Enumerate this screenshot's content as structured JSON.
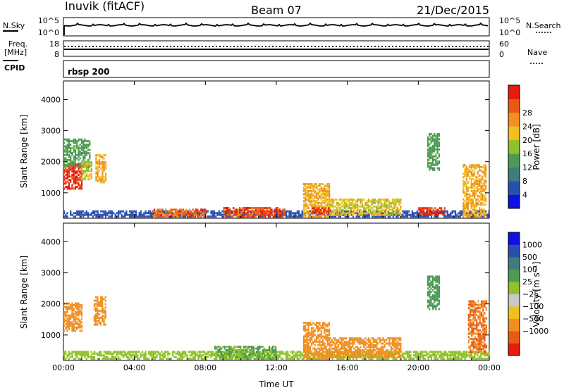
{
  "header": {
    "station": "Inuvik (fitACF)",
    "beam": "Beam 07",
    "date": "21/Dec/2015"
  },
  "side_labels": {
    "nsky": "N.Sky",
    "freq_line1": "Freq.",
    "freq_line2": "[MHz]",
    "cpid": "CPID",
    "nsearch": "N.Search",
    "nave": "Nave",
    "nsky_tick_top": "10^5",
    "nsky_tick_bottom": "10^0",
    "nsearch_tick_top": "10^5",
    "nsearch_tick_bottom": "10^0",
    "freq_tick_top": "18",
    "freq_tick_bottom": "8",
    "nave_tick_top": "60",
    "nave_tick_bottom": "0",
    "cpid_value": "rbsp 200"
  },
  "colors": {
    "power_scale": [
      "#1010e0",
      "#2a4fb0",
      "#3f7d7a",
      "#4c9a55",
      "#8fc12c",
      "#f0c020",
      "#f09020",
      "#e85a14",
      "#e81a10"
    ],
    "velocity_scale": [
      "#e81a10",
      "#e85a14",
      "#f09020",
      "#f0c020",
      "#c8c8c8",
      "#8fc12c",
      "#4c9a55",
      "#3f7d7a",
      "#2a4fb0",
      "#1010e0"
    ]
  },
  "chart_data": [
    {
      "type": "line",
      "name": "noise-panel",
      "series": [
        {
          "name": "N.Sky",
          "note": "approximately constant",
          "y": 3000
        },
        {
          "name": "N.Search",
          "note": "approximately constant",
          "y": 3000
        }
      ],
      "xlim": [
        "00:00",
        "24:00"
      ]
    },
    {
      "type": "line",
      "name": "freq-nave-panel",
      "series": [
        {
          "name": "Freq.",
          "y": 10.5
        },
        {
          "name": "Nave",
          "y": 30
        }
      ],
      "ylim_left": [
        8,
        18
      ],
      "ylim_right": [
        0,
        60
      ]
    },
    {
      "type": "heatmap",
      "name": "power",
      "ylabel": "Slant Range [km]",
      "xlabel": "",
      "colorbar_label": "Power [dB]",
      "colorbar_ticks": [
        "4",
        "8",
        "12",
        "16",
        "20",
        "24",
        "28"
      ],
      "x_ticks": [
        "00:00",
        "04:00",
        "08:00",
        "12:00",
        "16:00",
        "20:00",
        "00:00"
      ],
      "y_ticks": [
        "1000",
        "2000",
        "3000",
        "4000"
      ],
      "ylim": [
        180,
        4600
      ],
      "xlim_hours": [
        0,
        24
      ],
      "regions": [
        {
          "t0": 0.0,
          "t1": 1.0,
          "r0": 1100,
          "r1": 1900,
          "level": 28
        },
        {
          "t0": 0.0,
          "t1": 1.5,
          "r0": 1800,
          "r1": 2700,
          "level": 12
        },
        {
          "t0": 1.0,
          "t1": 1.6,
          "r0": 1400,
          "r1": 2000,
          "level": 16
        },
        {
          "t0": 1.8,
          "t1": 2.4,
          "r0": 1300,
          "r1": 2200,
          "level": 20
        },
        {
          "t0": 0.0,
          "t1": 24.0,
          "r0": 200,
          "r1": 400,
          "level": 6
        },
        {
          "t0": 5.0,
          "t1": 8.0,
          "r0": 200,
          "r1": 450,
          "level": 24
        },
        {
          "t0": 9.0,
          "t1": 12.5,
          "r0": 200,
          "r1": 500,
          "level": 26
        },
        {
          "t0": 11.0,
          "t1": 12.3,
          "r0": 250,
          "r1": 400,
          "level": 28
        },
        {
          "t0": 13.5,
          "t1": 15.0,
          "r0": 200,
          "r1": 1300,
          "level": 20
        },
        {
          "t0": 14.0,
          "t1": 15.0,
          "r0": 300,
          "r1": 500,
          "level": 28
        },
        {
          "t0": 15.0,
          "t1": 19.0,
          "r0": 250,
          "r1": 800,
          "level": 18
        },
        {
          "t0": 20.0,
          "t1": 21.5,
          "r0": 250,
          "r1": 500,
          "level": 28
        },
        {
          "t0": 20.5,
          "t1": 21.2,
          "r0": 1700,
          "r1": 2900,
          "level": 12
        },
        {
          "t0": 22.5,
          "t1": 23.8,
          "r0": 200,
          "r1": 1900,
          "level": 20
        }
      ]
    },
    {
      "type": "heatmap",
      "name": "velocity",
      "ylabel": "Slant Range [km]",
      "xlabel": "Time UT",
      "colorbar_label": "Velocity [m s⁻¹]",
      "colorbar_ticks": [
        "1000",
        "500",
        "100",
        "25",
        "−25",
        "−100",
        "−500",
        "−1000"
      ],
      "x_ticks": [
        "00:00",
        "04:00",
        "08:00",
        "12:00",
        "16:00",
        "20:00",
        "00:00"
      ],
      "y_ticks": [
        "1000",
        "2000",
        "3000",
        "4000"
      ],
      "ylim": [
        180,
        4600
      ],
      "xlim_hours": [
        0,
        24
      ],
      "regions": [
        {
          "t0": 0.0,
          "t1": 1.0,
          "r0": 1100,
          "r1": 2000,
          "level": -300
        },
        {
          "t0": 1.7,
          "t1": 2.4,
          "r0": 1300,
          "r1": 2200,
          "level": -300
        },
        {
          "t0": 0.0,
          "t1": 24.0,
          "r0": 200,
          "r1": 450,
          "level": 50
        },
        {
          "t0": 8.5,
          "t1": 12.0,
          "r0": 200,
          "r1": 600,
          "level": 100
        },
        {
          "t0": 13.5,
          "t1": 15.0,
          "r0": 200,
          "r1": 1400,
          "level": -200
        },
        {
          "t0": 15.0,
          "t1": 19.0,
          "r0": 250,
          "r1": 900,
          "level": -150
        },
        {
          "t0": 20.5,
          "t1": 21.2,
          "r0": 1800,
          "r1": 2900,
          "level": 200
        },
        {
          "t0": 22.8,
          "t1": 23.8,
          "r0": 400,
          "r1": 2100,
          "level": -500
        }
      ]
    }
  ],
  "x_axis_label": "Time UT"
}
